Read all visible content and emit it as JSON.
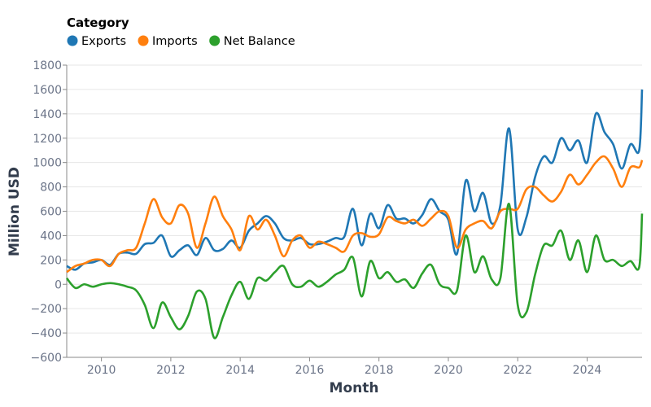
{
  "chart_data": {
    "type": "line",
    "title": "",
    "xlabel": "Month",
    "ylabel": "Million USD",
    "ylim": [
      -600,
      1800
    ],
    "yticks": [
      -600,
      -400,
      -200,
      0,
      200,
      400,
      600,
      800,
      1000,
      1200,
      1400,
      1600,
      1800
    ],
    "xticks": [
      "2010",
      "2012",
      "2014",
      "2016",
      "2018",
      "2020",
      "2022",
      "2024"
    ],
    "xlim": [
      "2009-01",
      "2025-08"
    ],
    "grid": true,
    "legend": {
      "title": "Category",
      "placement": "top-left"
    },
    "x": [
      "2009-01",
      "2009-04",
      "2009-07",
      "2009-10",
      "2010-01",
      "2010-04",
      "2010-07",
      "2010-10",
      "2011-01",
      "2011-04",
      "2011-07",
      "2011-10",
      "2012-01",
      "2012-04",
      "2012-07",
      "2012-10",
      "2013-01",
      "2013-04",
      "2013-07",
      "2013-10",
      "2014-01",
      "2014-04",
      "2014-07",
      "2014-10",
      "2015-01",
      "2015-04",
      "2015-07",
      "2015-10",
      "2016-01",
      "2016-04",
      "2016-07",
      "2016-10",
      "2017-01",
      "2017-04",
      "2017-07",
      "2017-10",
      "2018-01",
      "2018-04",
      "2018-07",
      "2018-10",
      "2019-01",
      "2019-04",
      "2019-07",
      "2019-10",
      "2020-01",
      "2020-04",
      "2020-07",
      "2020-10",
      "2021-01",
      "2021-04",
      "2021-07",
      "2021-10",
      "2022-01",
      "2022-04",
      "2022-07",
      "2022-10",
      "2023-01",
      "2023-04",
      "2023-07",
      "2023-10",
      "2024-01",
      "2024-04",
      "2024-07",
      "2024-10",
      "2025-01",
      "2025-04",
      "2025-07",
      "2025-08"
    ],
    "series": [
      {
        "name": "Exports",
        "color": "#1f77b4",
        "values": [
          150,
          120,
          170,
          180,
          200,
          160,
          250,
          260,
          250,
          330,
          340,
          400,
          230,
          280,
          320,
          240,
          380,
          280,
          290,
          360,
          300,
          440,
          500,
          560,
          500,
          380,
          360,
          380,
          330,
          330,
          350,
          380,
          390,
          620,
          320,
          580,
          460,
          650,
          540,
          540,
          500,
          570,
          700,
          600,
          530,
          250,
          850,
          600,
          750,
          500,
          650,
          1280,
          450,
          550,
          880,
          1050,
          1000,
          1200,
          1100,
          1180,
          1000,
          1400,
          1250,
          1150,
          950,
          1150,
          1100,
          1600
        ]
      },
      {
        "name": "Imports",
        "color": "#ff7f0e",
        "values": [
          100,
          150,
          170,
          200,
          200,
          150,
          250,
          280,
          300,
          500,
          700,
          550,
          500,
          650,
          580,
          300,
          500,
          720,
          560,
          450,
          280,
          560,
          450,
          530,
          400,
          230,
          360,
          400,
          300,
          350,
          330,
          300,
          270,
          400,
          420,
          390,
          410,
          550,
          520,
          500,
          530,
          480,
          540,
          600,
          560,
          300,
          450,
          500,
          520,
          460,
          600,
          620,
          620,
          780,
          800,
          730,
          680,
          760,
          900,
          820,
          900,
          1000,
          1050,
          950,
          800,
          960,
          960,
          1020
        ]
      },
      {
        "name": "Net Balance",
        "color": "#2ca02c",
        "values": [
          50,
          -30,
          0,
          -20,
          0,
          10,
          0,
          -20,
          -50,
          -170,
          -360,
          -150,
          -270,
          -370,
          -260,
          -60,
          -120,
          -440,
          -270,
          -90,
          20,
          -120,
          50,
          30,
          100,
          150,
          0,
          -20,
          30,
          -20,
          20,
          80,
          120,
          220,
          -100,
          190,
          50,
          100,
          20,
          40,
          -30,
          90,
          160,
          0,
          -30,
          -50,
          400,
          100,
          230,
          40,
          50,
          660,
          -170,
          -230,
          80,
          320,
          320,
          440,
          200,
          360,
          100,
          400,
          200,
          200,
          150,
          190,
          140,
          580
        ]
      }
    ]
  }
}
